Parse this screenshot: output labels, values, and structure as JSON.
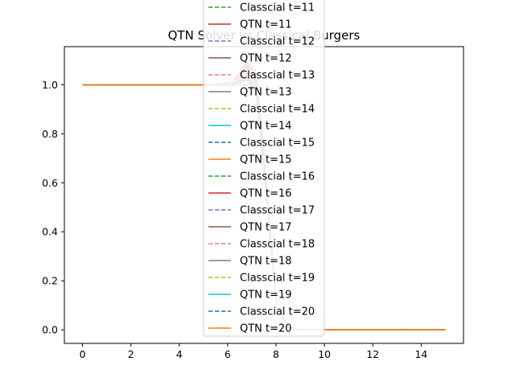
{
  "chart_data": {
    "type": "line",
    "title": "QTN Solver vs Classical Burgers",
    "xlabel": "",
    "ylabel": "",
    "xlim": [
      -0.75,
      15.75
    ],
    "ylim": [
      -0.055,
      1.155
    ],
    "xticks": [
      "0",
      "2",
      "4",
      "6",
      "8",
      "10",
      "12",
      "14"
    ],
    "yticks": [
      "0.0",
      "0.2",
      "0.4",
      "0.6",
      "0.8",
      "1.0"
    ],
    "legend_position": "upper center, overlapping the plot",
    "grid": false,
    "colors": [
      "#2ca02c",
      "#d62728",
      "#9467bd",
      "#8c564b",
      "#e377c2",
      "#7f7f7f",
      "#bcbd22",
      "#17becf",
      "#1f77b4",
      "#ff7f0e"
    ],
    "series": [
      {
        "name": "Classcial t=11",
        "style": "dashed",
        "color": "#2ca02c",
        "x": [
          0,
          5.5,
          6.2,
          6.8,
          7.2,
          7.6,
          8.0,
          8.5,
          9.0,
          15
        ],
        "y": [
          1.0,
          1.0,
          1.0,
          1.0,
          0.95,
          0.55,
          0.12,
          0.01,
          0.0,
          0.0
        ]
      },
      {
        "name": "QTN t=11",
        "style": "solid",
        "color": "#d62728",
        "x": [
          0,
          5.5,
          6.2,
          6.8,
          7.2,
          7.6,
          8.0,
          8.5,
          9.0,
          15
        ],
        "y": [
          1.0,
          1.0,
          1.0,
          1.02,
          0.96,
          0.56,
          0.12,
          0.01,
          0.0,
          0.0
        ]
      },
      {
        "name": "Classcial t=12",
        "style": "dashed",
        "color": "#9467bd",
        "x": [
          0,
          5.5,
          6.2,
          6.8,
          7.2,
          7.6,
          8.0,
          8.5,
          9.0,
          15
        ],
        "y": [
          1.0,
          1.0,
          1.0,
          1.0,
          0.95,
          0.55,
          0.12,
          0.01,
          0.0,
          0.0
        ]
      },
      {
        "name": "QTN t=12",
        "style": "solid",
        "color": "#8c564b",
        "x": [
          0,
          5.5,
          6.2,
          6.8,
          7.2,
          7.6,
          8.0,
          8.5,
          9.0,
          15
        ],
        "y": [
          1.0,
          1.0,
          1.0,
          1.03,
          0.97,
          0.56,
          0.12,
          0.01,
          0.0,
          0.0
        ]
      },
      {
        "name": "Classcial t=13",
        "style": "dashed",
        "color": "#e377c2",
        "x": [
          0,
          5.5,
          6.2,
          6.8,
          7.2,
          7.6,
          8.0,
          8.5,
          9.0,
          15
        ],
        "y": [
          1.0,
          1.0,
          1.0,
          1.0,
          0.95,
          0.55,
          0.12,
          0.01,
          0.0,
          0.0
        ]
      },
      {
        "name": "QTN t=13",
        "style": "solid",
        "color": "#7f7f7f",
        "x": [
          0,
          5.5,
          6.2,
          6.8,
          7.2,
          7.6,
          8.0,
          8.5,
          9.0,
          15
        ],
        "y": [
          1.0,
          1.0,
          1.0,
          1.04,
          0.98,
          0.57,
          0.12,
          0.01,
          0.0,
          0.0
        ]
      },
      {
        "name": "Classcial t=14",
        "style": "dashed",
        "color": "#bcbd22",
        "x": [
          0,
          5.5,
          6.2,
          6.8,
          7.2,
          7.6,
          8.0,
          8.5,
          9.0,
          15
        ],
        "y": [
          1.0,
          1.0,
          1.0,
          1.0,
          0.95,
          0.55,
          0.12,
          0.01,
          0.0,
          0.0
        ]
      },
      {
        "name": "QTN t=14",
        "style": "solid",
        "color": "#17becf",
        "x": [
          0,
          5.5,
          6.2,
          6.8,
          7.2,
          7.6,
          8.0,
          8.5,
          9.0,
          15
        ],
        "y": [
          1.0,
          1.0,
          1.0,
          1.05,
          0.99,
          0.57,
          0.12,
          0.01,
          0.0,
          0.0
        ]
      },
      {
        "name": "Classcial t=15",
        "style": "dashed",
        "color": "#1f77b4",
        "x": [
          0,
          5.5,
          6.2,
          6.8,
          7.2,
          7.6,
          8.0,
          8.5,
          9.0,
          15
        ],
        "y": [
          1.0,
          1.0,
          1.0,
          1.0,
          0.95,
          0.55,
          0.12,
          0.01,
          0.0,
          0.0
        ]
      },
      {
        "name": "QTN t=15",
        "style": "solid",
        "color": "#ff7f0e",
        "x": [
          0,
          5.5,
          6.2,
          6.8,
          7.2,
          7.6,
          8.0,
          8.5,
          9.0,
          15
        ],
        "y": [
          1.0,
          1.0,
          1.01,
          1.06,
          1.0,
          0.58,
          0.12,
          0.01,
          0.0,
          0.0
        ]
      },
      {
        "name": "Classcial t=16",
        "style": "dashed",
        "color": "#2ca02c",
        "x": [
          0,
          5.5,
          6.2,
          6.8,
          7.2,
          7.6,
          8.0,
          8.5,
          9.0,
          15
        ],
        "y": [
          1.0,
          1.0,
          1.0,
          1.0,
          0.95,
          0.55,
          0.12,
          0.01,
          0.0,
          0.0
        ]
      },
      {
        "name": "QTN t=16",
        "style": "solid",
        "color": "#d62728",
        "x": [
          0,
          5.5,
          6.2,
          6.8,
          7.2,
          7.6,
          8.0,
          8.5,
          9.0,
          15
        ],
        "y": [
          1.0,
          1.0,
          1.01,
          1.07,
          1.01,
          0.58,
          0.12,
          0.01,
          0.0,
          0.0
        ]
      },
      {
        "name": "Classcial t=17",
        "style": "dashed",
        "color": "#9467bd",
        "x": [
          0,
          5.5,
          6.2,
          6.8,
          7.2,
          7.6,
          8.0,
          8.5,
          9.0,
          15
        ],
        "y": [
          1.0,
          1.0,
          1.0,
          1.0,
          0.95,
          0.55,
          0.12,
          0.01,
          0.0,
          0.0
        ]
      },
      {
        "name": "QTN t=17",
        "style": "solid",
        "color": "#8c564b",
        "x": [
          0,
          5.5,
          6.2,
          6.8,
          7.2,
          7.6,
          8.0,
          8.5,
          9.0,
          15
        ],
        "y": [
          1.0,
          1.0,
          1.01,
          1.08,
          1.02,
          0.59,
          0.12,
          0.01,
          0.0,
          0.0
        ]
      },
      {
        "name": "Classcial t=18",
        "style": "dashed",
        "color": "#e377c2",
        "x": [
          0,
          5.5,
          6.2,
          6.8,
          7.2,
          7.6,
          8.0,
          8.5,
          9.0,
          15
        ],
        "y": [
          1.0,
          1.0,
          1.0,
          1.0,
          0.95,
          0.55,
          0.12,
          0.01,
          0.0,
          0.0
        ]
      },
      {
        "name": "QTN t=18",
        "style": "solid",
        "color": "#7f7f7f",
        "x": [
          0,
          5.5,
          6.2,
          6.8,
          7.2,
          7.6,
          8.0,
          8.5,
          9.0,
          15
        ],
        "y": [
          1.0,
          1.0,
          1.01,
          1.09,
          1.03,
          0.59,
          0.12,
          0.01,
          0.0,
          0.0
        ]
      },
      {
        "name": "Classcial t=19",
        "style": "dashed",
        "color": "#bcbd22",
        "x": [
          0,
          5.5,
          6.2,
          6.8,
          7.2,
          7.6,
          8.0,
          8.5,
          9.0,
          15
        ],
        "y": [
          1.0,
          1.0,
          1.0,
          1.0,
          0.95,
          0.55,
          0.12,
          0.01,
          0.0,
          0.0
        ]
      },
      {
        "name": "QTN t=19",
        "style": "solid",
        "color": "#17becf",
        "x": [
          0,
          5.5,
          6.2,
          6.8,
          7.2,
          7.6,
          8.0,
          8.5,
          9.0,
          15
        ],
        "y": [
          1.0,
          1.0,
          1.01,
          1.1,
          1.04,
          0.6,
          0.12,
          0.01,
          0.0,
          0.0
        ]
      },
      {
        "name": "Classcial t=20",
        "style": "dashed",
        "color": "#1f77b4",
        "x": [
          0,
          5.5,
          6.2,
          6.8,
          7.2,
          7.6,
          8.0,
          8.5,
          9.0,
          15
        ],
        "y": [
          1.0,
          1.0,
          1.0,
          1.0,
          0.95,
          0.55,
          0.12,
          0.01,
          0.0,
          0.0
        ]
      },
      {
        "name": "QTN t=20",
        "style": "solid",
        "color": "#ff7f0e",
        "x": [
          0,
          5.5,
          6.2,
          6.8,
          7.2,
          7.6,
          8.0,
          8.5,
          9.0,
          15
        ],
        "y": [
          1.0,
          1.0,
          1.01,
          1.1,
          1.05,
          0.6,
          0.12,
          0.01,
          0.0,
          0.0
        ]
      }
    ]
  }
}
